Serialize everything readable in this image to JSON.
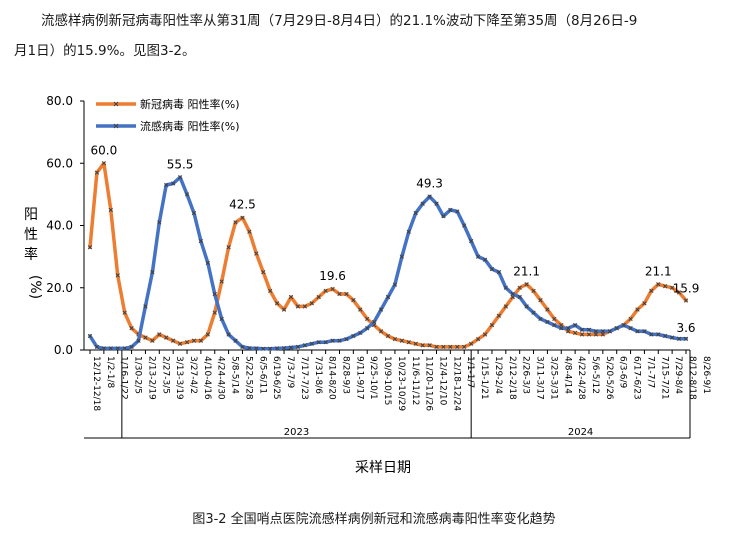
{
  "text": {
    "paragraph_line1": "流感样病例新冠病毒阳性率从第31周（7月29日-8月4日）的21.1%波动下降至第35周（8月26日-9",
    "paragraph_line2": "月1日）的15.9%。见图3-2。",
    "caption": "图3-2  全国哨点医院流感样病例新冠和流感病毒阳性率变化趋势"
  },
  "colors": {
    "covid": "#ED7D31",
    "flu": "#4472C4",
    "marker": "#404040",
    "axis": "#000000"
  },
  "chart_data": {
    "type": "line",
    "title": "",
    "xlabel": "采样日期",
    "ylabel": "阳性率\n(%)",
    "ylim": [
      0,
      80
    ],
    "yticks": [
      "0.0",
      "20.0",
      "40.0",
      "60.0",
      "80.0"
    ],
    "grid": false,
    "legend_position": "top-left",
    "years": [
      "2023",
      "2024"
    ],
    "x_tick_labels": [
      "12/12-12/18",
      "1/2-1/8",
      "1/16-1/22",
      "1/30-2/5",
      "2/13-2/19",
      "2/27-3/5",
      "3/13-3/19",
      "3/27-4/2",
      "4/10-4/16",
      "4/24-4/30",
      "5/8-5/14",
      "5/22-5/28",
      "6/5-6/11",
      "6/19-6/25",
      "7/3-7/9",
      "7/17-7/23",
      "7/31-8/6",
      "8/14-8/20",
      "8/28-9/3",
      "9/11-9/17",
      "9/25-10/1",
      "10/9-10/15",
      "10/23-10/29",
      "11/6-11/12",
      "11/20-11/26",
      "12/4-12/10",
      "12/18-12/24",
      "1/1-1/7",
      "1/15-1/21",
      "1/29-2/4",
      "2/12-2/18",
      "2/26-3/3",
      "3/11-3/17",
      "3/25-3/31",
      "4/8-4/14",
      "4/22-4/28",
      "5/6-5/12",
      "5/20-5/26",
      "6/3-6/9",
      "6/17-6/23",
      "7/1-7/7",
      "7/15-7/21",
      "7/29-8/4",
      "8/12-8/18",
      "8/26-9/1"
    ],
    "series": [
      {
        "name": "新冠病毒 阳性率(%)",
        "values": [
          33,
          57,
          60,
          45,
          24,
          12,
          7,
          5,
          4,
          3,
          5,
          4,
          3,
          2,
          2.5,
          3,
          3,
          5,
          12,
          22,
          33,
          41,
          42.5,
          38,
          31,
          25,
          19,
          15,
          13,
          17,
          14,
          14,
          15,
          17,
          19,
          19.6,
          18,
          18,
          16,
          13,
          10,
          8,
          6,
          4.5,
          3.5,
          3,
          2.5,
          2,
          1.5,
          1.5,
          1,
          1,
          1,
          1,
          1,
          2,
          3.5,
          5,
          8,
          11,
          14,
          17,
          20,
          21.1,
          19,
          16,
          13,
          10,
          8,
          6,
          5.5,
          5,
          5,
          5,
          5,
          6,
          7,
          8,
          10,
          13,
          15,
          19,
          21.1,
          20.5,
          20,
          18.5,
          15.9
        ],
        "labels": [
          {
            "index": 2,
            "text": "60.0"
          },
          {
            "index": 22,
            "text": "42.5"
          },
          {
            "index": 35,
            "text": "19.6"
          },
          {
            "index": 63,
            "text": "21.1"
          },
          {
            "index": 82,
            "text": "21.1"
          },
          {
            "index": 86,
            "text": "15.9"
          }
        ]
      },
      {
        "name": "流感病毒 阳性率(%)",
        "values": [
          4.5,
          1,
          0.5,
          0.5,
          0.5,
          0.5,
          1,
          3,
          14,
          25,
          41,
          53,
          53.5,
          55.5,
          50,
          44,
          35,
          28,
          18,
          10,
          5,
          3,
          1,
          0.6,
          0.5,
          0.4,
          0.4,
          0.5,
          0.6,
          0.8,
          1,
          1.5,
          2,
          2.5,
          2.5,
          3,
          3,
          3.5,
          4.5,
          5.5,
          7,
          9,
          13,
          17,
          21,
          30,
          38,
          44,
          47,
          49.3,
          47,
          43,
          45,
          44.5,
          40,
          35,
          30,
          29,
          26,
          25,
          20,
          18,
          17,
          14,
          12,
          10,
          9,
          8,
          7,
          7,
          8,
          6.5,
          6.5,
          6,
          6,
          6,
          7,
          8,
          7,
          6,
          6,
          5,
          5,
          4.5,
          4,
          3.6,
          3.6
        ],
        "labels": [
          {
            "index": 13,
            "text": "55.5"
          },
          {
            "index": 49,
            "text": "49.3"
          },
          {
            "index": 86,
            "text": "3.6"
          }
        ]
      }
    ]
  }
}
